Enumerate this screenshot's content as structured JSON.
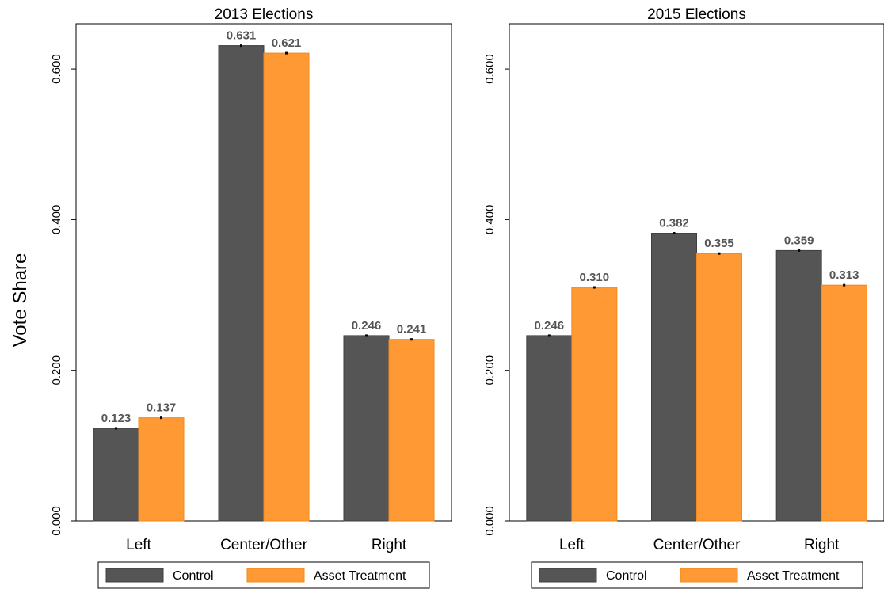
{
  "y_axis_title": "Vote Share",
  "legend": [
    {
      "label": "Control",
      "color": "#555555"
    },
    {
      "label": "Asset Treatment",
      "color": "#FF9933"
    }
  ],
  "chart_data": [
    {
      "type": "bar",
      "title": "2013 Elections",
      "categories": [
        "Left",
        "Center/Other",
        "Right"
      ],
      "series": [
        {
          "name": "Control",
          "values": [
            0.123,
            0.631,
            0.246
          ],
          "labels": [
            "0.123",
            "0.631",
            "0.246"
          ],
          "color": "#555555"
        },
        {
          "name": "Asset Treatment",
          "values": [
            0.137,
            0.621,
            0.241
          ],
          "labels": [
            "0.137",
            "0.621",
            "0.241"
          ],
          "color": "#FF9933"
        }
      ],
      "ylabel": "Vote Share",
      "ylim": [
        0,
        0.66
      ],
      "yticks": [
        0.0,
        0.2,
        0.4,
        0.6
      ],
      "ytick_labels": [
        "0.000",
        "0.200",
        "0.400",
        "0.600"
      ],
      "grid": false,
      "legend_position": "bottom"
    },
    {
      "type": "bar",
      "title": "2015 Elections",
      "categories": [
        "Left",
        "Center/Other",
        "Right"
      ],
      "series": [
        {
          "name": "Control",
          "values": [
            0.246,
            0.382,
            0.359
          ],
          "labels": [
            "0.246",
            "0.382",
            "0.359"
          ],
          "color": "#555555"
        },
        {
          "name": "Asset Treatment",
          "values": [
            0.31,
            0.355,
            0.313
          ],
          "labels": [
            "0.310",
            "0.355",
            "0.313"
          ],
          "color": "#FF9933"
        }
      ],
      "ylim": [
        0,
        0.66
      ],
      "yticks": [
        0.0,
        0.2,
        0.4,
        0.6
      ],
      "ytick_labels": [
        "0.000",
        "0.200",
        "0.400",
        "0.600"
      ],
      "grid": false,
      "legend_position": "bottom"
    }
  ]
}
